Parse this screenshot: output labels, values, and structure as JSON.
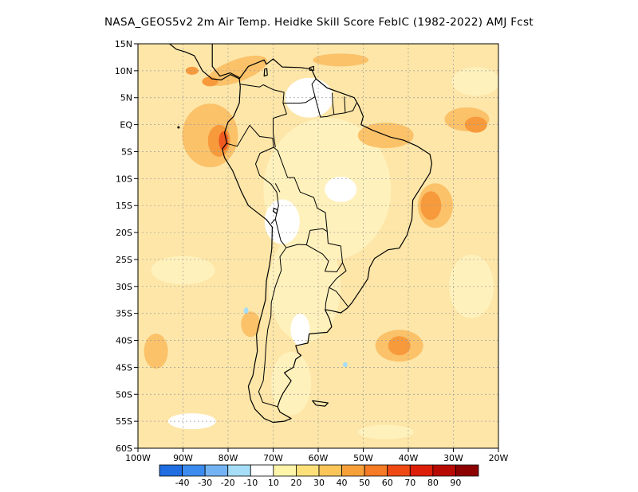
{
  "title": "NASA_GEOS5v2  2m Air Temp. Heidke Skill Score FebIC (1982-2022) AMJ Fcst",
  "lat_labels": [
    "15N",
    "10N",
    "5N",
    "EQ",
    "5S",
    "10S",
    "15S",
    "20S",
    "25S",
    "30S",
    "35S",
    "40S",
    "45S",
    "50S",
    "55S",
    "60S"
  ],
  "lon_labels": [
    "100W",
    "90W",
    "80W",
    "70W",
    "60W",
    "50W",
    "40W",
    "30W",
    "20W"
  ],
  "colorbar": {
    "labels": [
      "-40",
      "-30",
      "-20",
      "-10",
      "10",
      "20",
      "30",
      "40",
      "50",
      "60",
      "70",
      "80",
      "90"
    ],
    "colors": [
      "#1f6de0",
      "#3c8bee",
      "#73b3f3",
      "#a6ddf7",
      "#ffffff",
      "#fff5aa",
      "#fde07a",
      "#fbc55a",
      "#f7a03a",
      "#f57b26",
      "#f04a14",
      "#dd1e08",
      "#b70a02",
      "#8c0000"
    ]
  },
  "map_colors": {
    "background": "#fde6a8",
    "light": "#fff1bc",
    "white": "#ffffff",
    "orange": "#fbc26a",
    "dark_orange": "#f79a3c",
    "red": "#f05a1e",
    "blue": "#a6ddf7",
    "coast": "#000000",
    "grid": "#9a9a9a"
  }
}
